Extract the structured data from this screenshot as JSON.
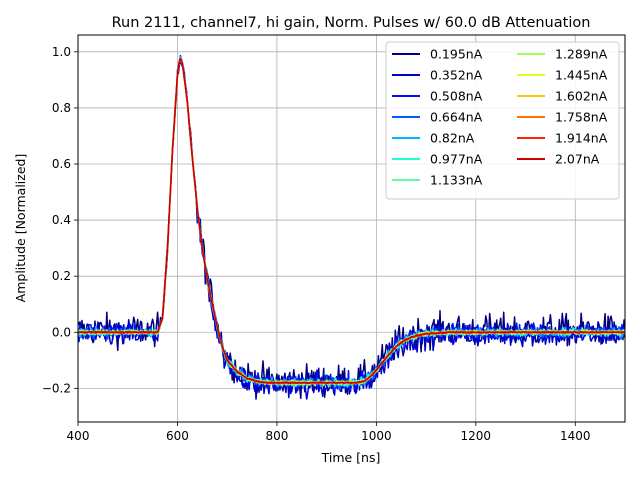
{
  "chart_data": {
    "type": "line",
    "title": "Run 2111, channel7, hi gain, Norm. Pulses w/ 60.0 dB Attenuation",
    "xlabel": "Time [ns]",
    "ylabel": "Amplitude [Normalized]",
    "xlim": [
      400,
      1500
    ],
    "ylim": [
      -0.32,
      1.06
    ],
    "xticks": [
      "400",
      "600",
      "800",
      "1000",
      "1200",
      "1400"
    ],
    "yticks": [
      "−0.2",
      "0.0",
      "0.2",
      "0.4",
      "0.6",
      "0.8",
      "1.0"
    ],
    "xtick_values": [
      400,
      600,
      800,
      1000,
      1200,
      1400
    ],
    "ytick_values": [
      -0.2,
      0.0,
      0.2,
      0.4,
      0.6,
      0.8,
      1.0
    ],
    "grid": true,
    "legend_position": "top-right",
    "legend_columns": 2,
    "pulse_shape": {
      "x": [
        400,
        560,
        570,
        580,
        590,
        600,
        605,
        610,
        620,
        630,
        640,
        650,
        660,
        670,
        680,
        690,
        700,
        720,
        740,
        760,
        780,
        800,
        850,
        900,
        940,
        960,
        975,
        990,
        1000,
        1020,
        1040,
        1060,
        1080,
        1100,
        1150,
        1200,
        1300,
        1400,
        1500
      ],
      "y": [
        0.0,
        0.0,
        0.05,
        0.3,
        0.65,
        0.92,
        0.98,
        0.96,
        0.82,
        0.62,
        0.44,
        0.3,
        0.19,
        0.1,
        0.02,
        -0.05,
        -0.1,
        -0.14,
        -0.165,
        -0.175,
        -0.18,
        -0.18,
        -0.18,
        -0.18,
        -0.18,
        -0.18,
        -0.175,
        -0.155,
        -0.135,
        -0.09,
        -0.05,
        -0.025,
        -0.012,
        -0.005,
        0.0,
        0.0,
        0.0,
        0.0,
        0.0
      ]
    },
    "series": [
      {
        "name": "0.195nA",
        "color": "#00007f",
        "noise": 0.028
      },
      {
        "name": "0.352nA",
        "color": "#0000cd",
        "noise": 0.02
      },
      {
        "name": "0.508nA",
        "color": "#0010ff",
        "noise": 0.014
      },
      {
        "name": "0.664nA",
        "color": "#005cff",
        "noise": 0.01
      },
      {
        "name": "0.82nA",
        "color": "#00b4ff",
        "noise": 0.008
      },
      {
        "name": "0.977nA",
        "color": "#1fffd7",
        "noise": 0.006
      },
      {
        "name": "1.133nA",
        "color": "#56ffa0",
        "noise": 0.005
      },
      {
        "name": "1.289nA",
        "color": "#a0ff56",
        "noise": 0.004
      },
      {
        "name": "1.445nA",
        "color": "#d7ff1f",
        "noise": 0.003
      },
      {
        "name": "1.602nA",
        "color": "#ffc900",
        "noise": 0.003
      },
      {
        "name": "1.758nA",
        "color": "#ff7300",
        "noise": 0.002
      },
      {
        "name": "1.914nA",
        "color": "#ff2200",
        "noise": 0.002
      },
      {
        "name": "2.07nA",
        "color": "#cd0000",
        "noise": 0.001
      }
    ]
  }
}
